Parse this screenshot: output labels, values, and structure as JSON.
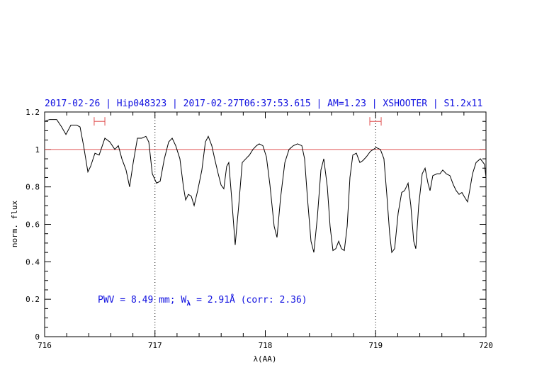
{
  "chart_data": {
    "type": "line",
    "title": "2017-02-26 | Hip048323 | 2017-02-27T06:37:53.615 | AM=1.23 | XSHOOTER | S1.2x11",
    "xlabel": "λ(AA)",
    "ylabel": "norm. flux",
    "annotation": [
      "PWV = 8.49 mm; W",
      "λ",
      " = 2.91Å (corr: 2.36)"
    ],
    "xlim": [
      716,
      720
    ],
    "ylim": [
      0,
      1.2
    ],
    "xticks": [
      716,
      717,
      718,
      719,
      720
    ],
    "yticks": [
      0,
      0.2,
      0.4,
      0.6,
      0.8,
      1,
      1.2
    ],
    "xminorticks": [
      716.2,
      716.4,
      716.6,
      716.8,
      717.2,
      717.4,
      717.6,
      717.8,
      718.2,
      718.4,
      718.6,
      718.8,
      719.2,
      719.4,
      719.6,
      719.8
    ],
    "yminorticks": [
      0.05,
      0.1,
      0.15,
      0.25,
      0.3,
      0.35,
      0.45,
      0.5,
      0.55,
      0.65,
      0.7,
      0.75,
      0.85,
      0.9,
      0.95,
      1.05,
      1.1,
      1.15
    ],
    "color": "#000000",
    "reference_line": {
      "value": 1,
      "color": "#e05050"
    },
    "vlines": [
      717,
      719
    ],
    "ranges": [
      {
        "x": [
          716.449,
          716.546
        ],
        "y": 1.15
      },
      {
        "x": [
          718.947,
          719.05
        ],
        "y": 1.15
      }
    ],
    "range_color": "#e05050",
    "x": [
      716.0,
      716.045,
      716.109,
      716.154,
      716.193,
      716.238,
      716.289,
      716.321,
      716.353,
      716.392,
      716.417,
      716.456,
      716.494,
      716.546,
      716.591,
      716.636,
      716.668,
      716.7,
      716.738,
      716.77,
      716.803,
      716.841,
      716.88,
      716.918,
      716.944,
      716.976,
      717.014,
      717.047,
      717.085,
      717.124,
      717.156,
      717.188,
      717.226,
      717.258,
      717.278,
      717.303,
      717.329,
      717.355,
      717.387,
      717.425,
      717.457,
      717.483,
      717.515,
      717.541,
      717.573,
      717.599,
      717.624,
      717.65,
      717.669,
      717.695,
      717.727,
      717.759,
      717.791,
      717.823,
      717.856,
      717.888,
      717.92,
      717.945,
      717.978,
      718.01,
      718.042,
      718.08,
      718.106,
      718.138,
      718.177,
      718.215,
      718.254,
      718.292,
      718.331,
      718.356,
      718.382,
      718.414,
      718.44,
      718.472,
      718.504,
      718.53,
      718.562,
      718.587,
      718.613,
      718.639,
      718.665,
      718.69,
      718.716,
      718.742,
      718.767,
      718.793,
      718.825,
      718.857,
      718.883,
      718.915,
      718.953,
      719.005,
      719.043,
      719.075,
      719.101,
      719.127,
      719.146,
      719.172,
      719.204,
      719.236,
      719.262,
      719.294,
      719.319,
      719.345,
      719.364,
      719.39,
      719.422,
      719.448,
      719.474,
      719.493,
      719.518,
      719.557,
      719.583,
      719.608,
      719.64,
      719.673,
      719.705,
      719.73,
      719.756,
      719.782,
      719.801,
      719.833,
      719.852,
      719.878,
      719.91,
      719.949,
      719.987,
      720.0
    ],
    "values": [
      1.15,
      1.16,
      1.16,
      1.12,
      1.08,
      1.13,
      1.13,
      1.12,
      1.02,
      0.88,
      0.91,
      0.98,
      0.97,
      1.06,
      1.04,
      1.0,
      1.02,
      0.95,
      0.89,
      0.8,
      0.93,
      1.06,
      1.06,
      1.07,
      1.04,
      0.87,
      0.82,
      0.83,
      0.95,
      1.04,
      1.06,
      1.02,
      0.95,
      0.8,
      0.73,
      0.76,
      0.75,
      0.7,
      0.78,
      0.89,
      1.04,
      1.07,
      1.02,
      0.95,
      0.87,
      0.81,
      0.79,
      0.91,
      0.93,
      0.74,
      0.49,
      0.7,
      0.93,
      0.95,
      0.97,
      1.0,
      1.02,
      1.03,
      1.02,
      0.96,
      0.81,
      0.59,
      0.53,
      0.74,
      0.93,
      1.0,
      1.02,
      1.03,
      1.02,
      0.95,
      0.74,
      0.51,
      0.45,
      0.64,
      0.89,
      0.95,
      0.8,
      0.59,
      0.46,
      0.47,
      0.51,
      0.47,
      0.46,
      0.59,
      0.85,
      0.97,
      0.98,
      0.93,
      0.94,
      0.96,
      0.99,
      1.01,
      1.0,
      0.95,
      0.76,
      0.55,
      0.45,
      0.47,
      0.66,
      0.77,
      0.78,
      0.82,
      0.7,
      0.51,
      0.47,
      0.7,
      0.87,
      0.9,
      0.82,
      0.78,
      0.86,
      0.87,
      0.87,
      0.89,
      0.87,
      0.86,
      0.81,
      0.78,
      0.76,
      0.77,
      0.75,
      0.72,
      0.78,
      0.87,
      0.93,
      0.95,
      0.92,
      0.85
    ]
  }
}
